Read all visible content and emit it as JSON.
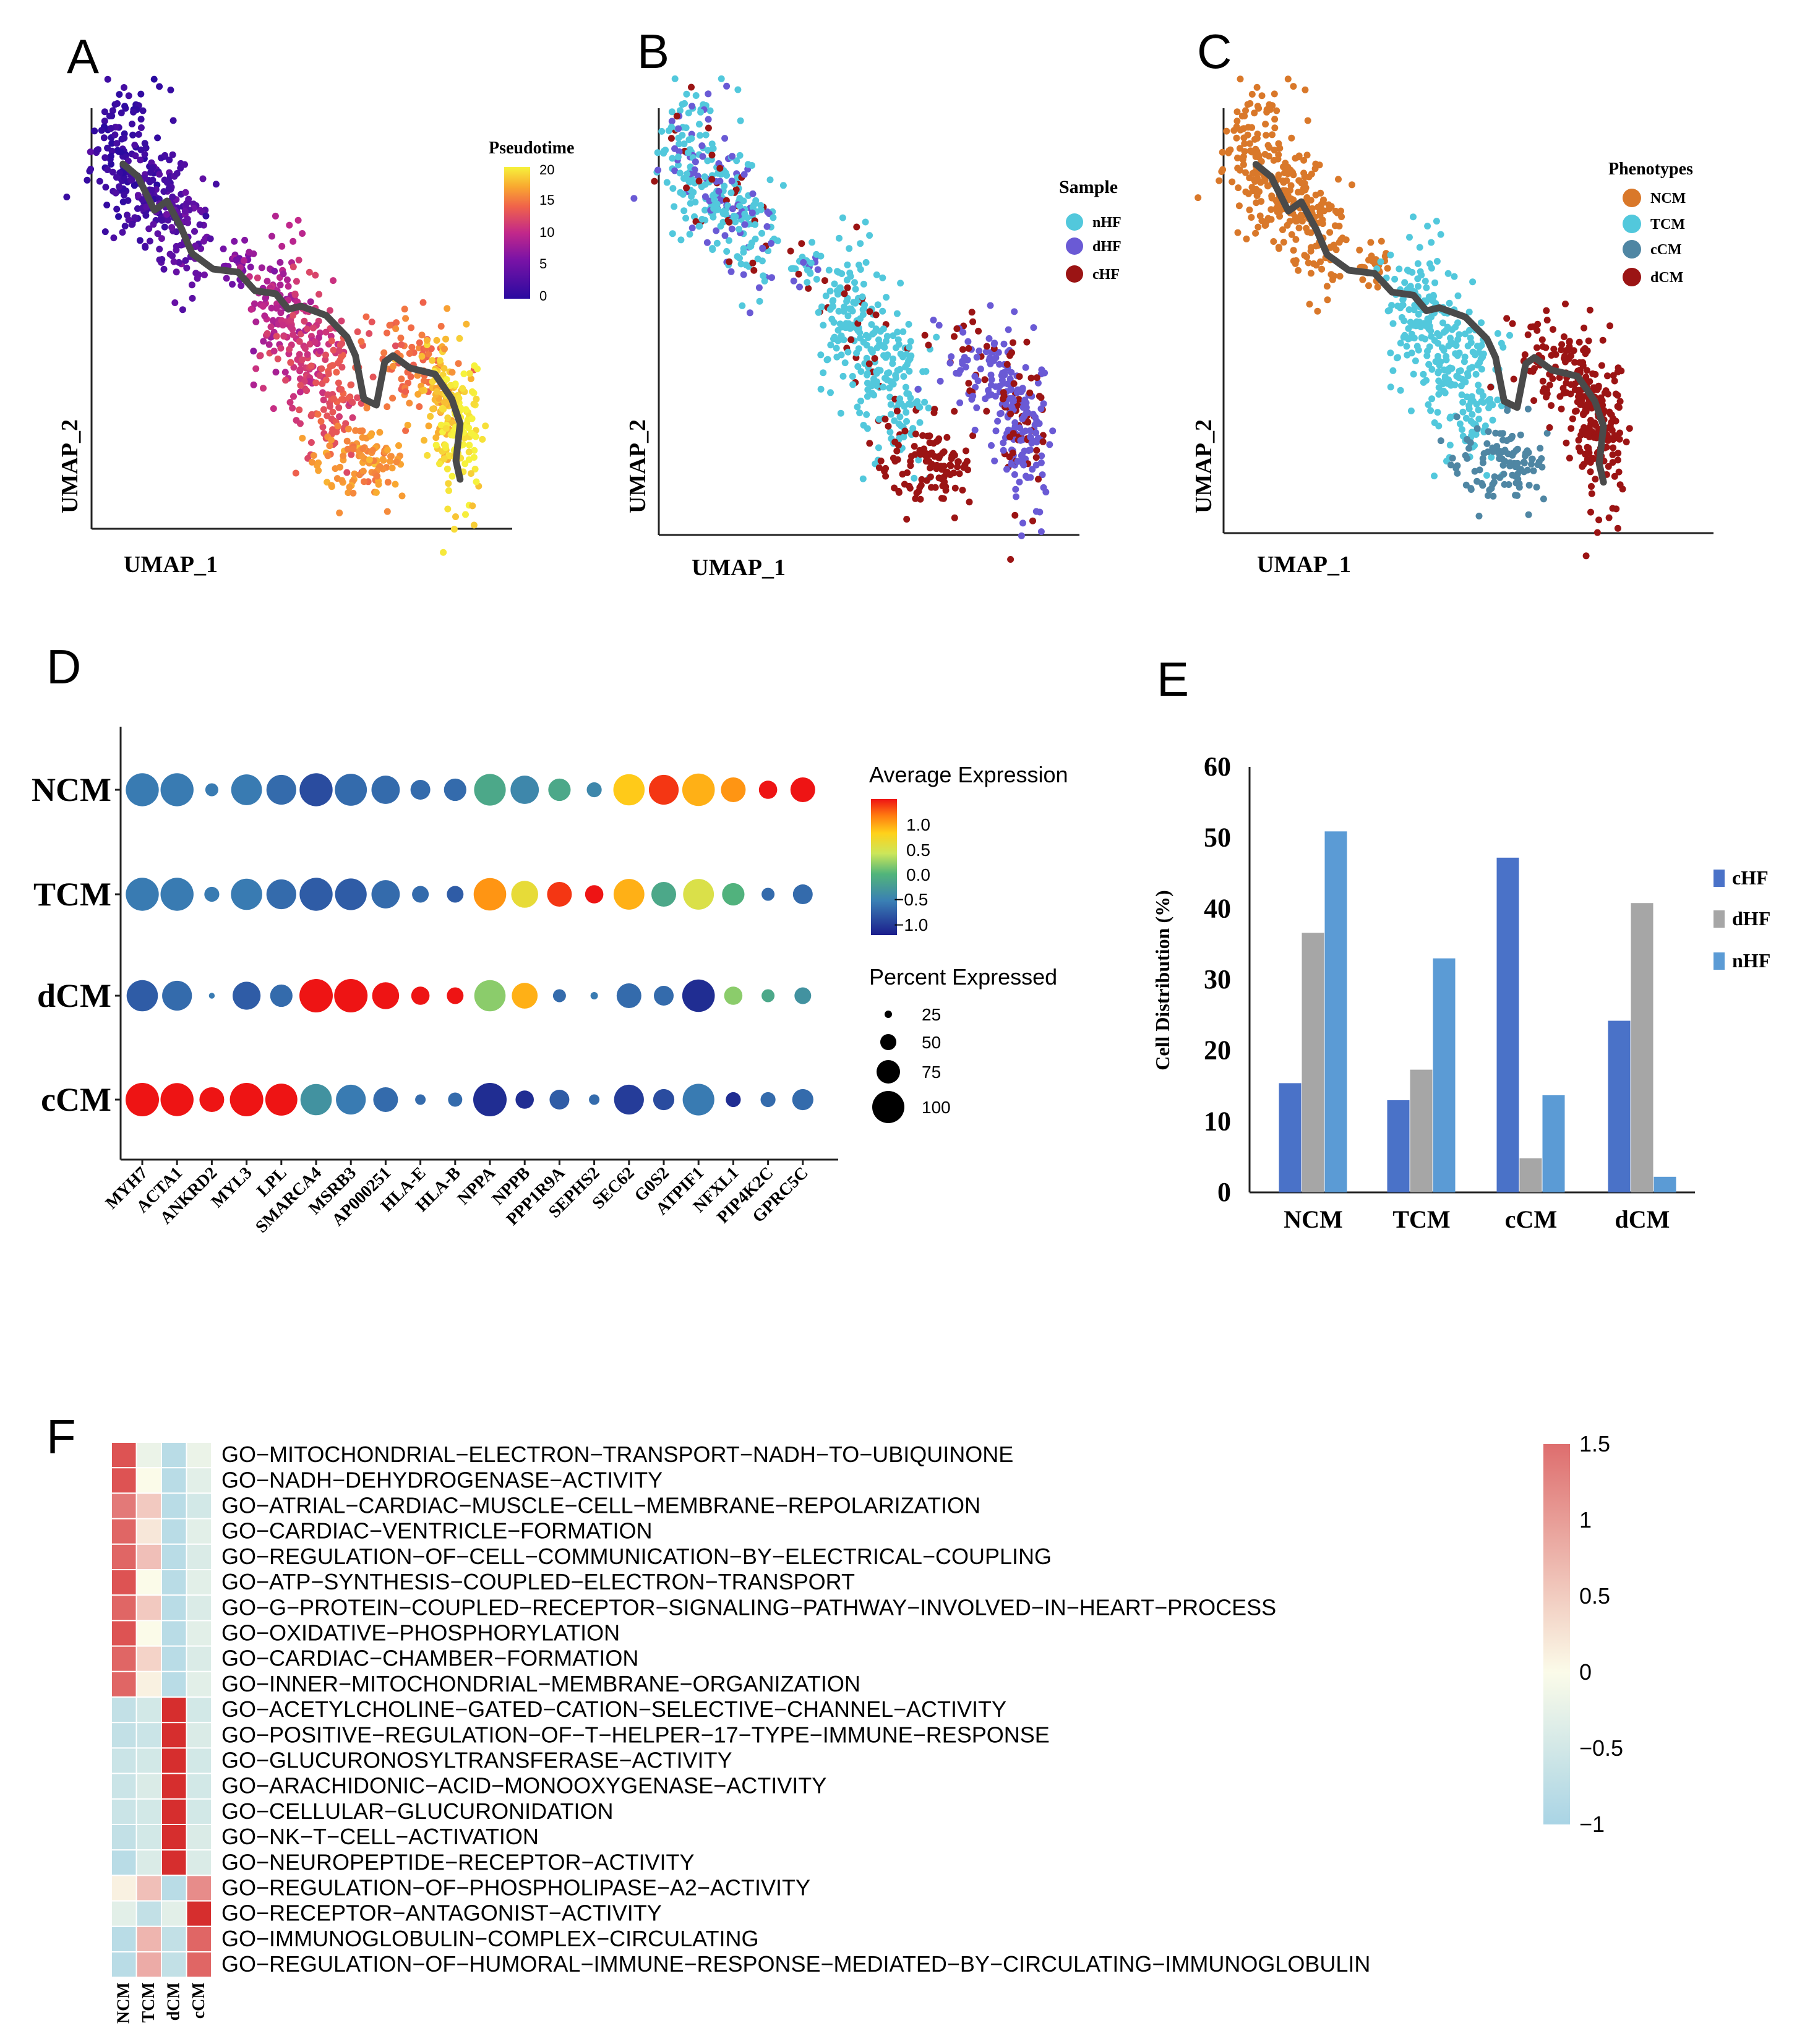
{
  "colors": {
    "NCM": "#d9782a",
    "TCM": "#52c8dc",
    "cCM": "#4f86a3",
    "dCM": "#9b1414",
    "nHF": "#52c8dc",
    "dHF": "#6a5ad5",
    "cHF": "#9b1414",
    "bar_cHF": "#4a72c8",
    "bar_dHF": "#a6a6a6",
    "bar_nHF": "#5b9bd5",
    "trajectory": "#4a4a4a"
  },
  "panel_labels": [
    "A",
    "B",
    "C",
    "D",
    "E",
    "F"
  ],
  "umap": {
    "xlabel": "UMAP_1",
    "ylabel": "UMAP_2",
    "A": {
      "legend_title": "Pseudotime",
      "ticks": [
        "20",
        "15",
        "10",
        "5",
        "0"
      ],
      "range": [
        0,
        20
      ]
    },
    "B": {
      "legend_title": "Sample",
      "items": [
        "nHF",
        "dHF",
        "cHF"
      ]
    },
    "C": {
      "legend_title": "Phenotypes",
      "items": [
        "NCM",
        "TCM",
        "cCM",
        "dCM"
      ]
    }
  },
  "dotplot": {
    "rows": [
      "NCM",
      "TCM",
      "dCM",
      "cCM"
    ],
    "genes": [
      "MYH7",
      "ACTA1",
      "ANKRD2",
      "MYL3",
      "LPL",
      "SMARCA4",
      "MSRB3",
      "AP000251",
      "HLA-E",
      "HLA-B",
      "NPPA",
      "NPPB",
      "PPP1R9A",
      "SEPHS2",
      "SEC62",
      "G0S2",
      "ATPIF1",
      "NFXL1",
      "PIP4K2C",
      "GPRC5C"
    ],
    "avg_expr": [
      [
        -0.6,
        -0.6,
        -0.6,
        -0.6,
        -0.7,
        -0.9,
        -0.7,
        -0.7,
        -0.7,
        -0.7,
        -0.2,
        -0.5,
        -0.2,
        -0.5,
        0.7,
        1.2,
        0.8,
        0.9,
        1.3,
        1.3
      ],
      [
        -0.6,
        -0.6,
        -0.6,
        -0.6,
        -0.7,
        -0.8,
        -0.8,
        -0.7,
        -0.7,
        -0.8,
        0.9,
        0.5,
        1.2,
        1.3,
        0.8,
        -0.2,
        0.4,
        -0.1,
        -0.7,
        -0.7
      ],
      [
        -0.8,
        -0.7,
        -0.6,
        -0.8,
        -0.7,
        1.3,
        1.3,
        1.3,
        1.3,
        1.3,
        0.1,
        0.8,
        -0.7,
        -0.6,
        -0.7,
        -0.7,
        -1.1,
        0.1,
        -0.2,
        -0.4
      ],
      [
        1.3,
        1.3,
        1.3,
        1.3,
        1.3,
        -0.4,
        -0.6,
        -0.7,
        -0.7,
        -0.7,
        -1.1,
        -1.1,
        -0.8,
        -0.7,
        -1.0,
        -0.9,
        -0.6,
        -1.1,
        -0.7,
        -0.7
      ]
    ],
    "pct_expr": [
      [
        98,
        98,
        15,
        85,
        80,
        98,
        92,
        72,
        35,
        45,
        90,
        72,
        45,
        20,
        88,
        80,
        95,
        55,
        30,
        55
      ],
      [
        98,
        98,
        20,
        88,
        80,
        98,
        90,
        72,
        25,
        25,
        95,
        65,
        55,
        30,
        85,
        55,
        85,
        45,
        15,
        35
      ],
      [
        88,
        80,
        3,
        70,
        45,
        100,
        100,
        65,
        30,
        25,
        88,
        60,
        15,
        5,
        55,
        35,
        95,
        30,
        15,
        25
      ],
      [
        100,
        98,
        55,
        100,
        92,
        88,
        80,
        55,
        10,
        18,
        100,
        30,
        35,
        10,
        80,
        40,
        90,
        20,
        20,
        40
      ]
    ],
    "legend_title_expr": "Average Expression",
    "legend_ticks_expr": [
      "1.0",
      "0.5",
      "0.0",
      "−0.5",
      "−1.0"
    ],
    "legend_title_pct": "Percent Expressed",
    "legend_ticks_pct": [
      "25",
      "50",
      "75",
      "100"
    ]
  },
  "chart_data": [
    {
      "type": "bar",
      "panel": "E",
      "categories": [
        "NCM",
        "TCM",
        "cCM",
        "dCM"
      ],
      "series": [
        {
          "name": "cHF",
          "values": [
            15.4,
            13.0,
            47.2,
            24.2
          ]
        },
        {
          "name": "dHF",
          "values": [
            36.6,
            17.3,
            4.8,
            40.8
          ]
        },
        {
          "name": "nHF",
          "values": [
            50.9,
            33.0,
            13.7,
            2.2
          ]
        }
      ],
      "ylabel": "Cell Distribution (%)",
      "ylim": [
        0,
        60
      ],
      "yticks": [
        "0",
        "10",
        "20",
        "30",
        "40",
        "50",
        "60"
      ],
      "legend": "right"
    },
    {
      "type": "heatmap",
      "panel": "F",
      "columns": [
        "NCM",
        "TCM",
        "dCM",
        "cCM"
      ],
      "rows": [
        "GO−MITOCHONDRIAL−ELECTRON−TRANSPORT−NADH−TO−UBIQUINONE",
        "GO−NADH−DEHYDROGENASE−ACTIVITY",
        "GO−ATRIAL−CARDIAC−MUSCLE−CELL−MEMBRANE−REPOLARIZATION",
        "GO−CARDIAC−VENTRICLE−FORMATION",
        "GO−REGULATION−OF−CELL−COMMUNICATION−BY−ELECTRICAL−COUPLING",
        "GO−ATP−SYNTHESIS−COUPLED−ELECTRON−TRANSPORT",
        "GO−G−PROTEIN−COUPLED−RECEPTOR−SIGNALING−PATHWAY−INVOLVED−IN−HEART−PROCESS",
        "GO−OXIDATIVE−PHOSPHORYLATION",
        "GO−CARDIAC−CHAMBER−FORMATION",
        "GO−INNER−MITOCHONDRIAL−MEMBRANE−ORGANIZATION",
        "GO−ACETYLCHOLINE−GATED−CATION−SELECTIVE−CHANNEL−ACTIVITY",
        "GO−POSITIVE−REGULATION−OF−T−HELPER−17−TYPE−IMMUNE−RESPONSE",
        "GO−GLUCURONOSYLTRANSFERASE−ACTIVITY",
        "GO−ARACHIDONIC−ACID−MONOOXYGENASE−ACTIVITY",
        "GO−CELLULAR−GLUCURONIDATION",
        "GO−NK−T−CELL−ACTIVATION",
        "GO−NEUROPEPTIDE−RECEPTOR−ACTIVITY",
        "GO−REGULATION−OF−PHOSPHOLIPASE−A2−ACTIVITY",
        "GO−RECEPTOR−ANTAGONIST−ACTIVITY",
        "GO−IMMUNOGLOBULIN−COMPLEX−CIRCULATING",
        "GO−REGULATION−OF−HUMORAL−IMMUNE−RESPONSE−MEDIATED−BY−CIRCULATING−IMMUNOGLOBULIN"
      ],
      "values": [
        [
          1.3,
          -0.2,
          -0.8,
          -0.2
        ],
        [
          1.3,
          0.0,
          -0.8,
          -0.3
        ],
        [
          1.1,
          0.5,
          -0.8,
          -0.5
        ],
        [
          1.2,
          0.2,
          -0.8,
          -0.3
        ],
        [
          1.2,
          0.6,
          -0.8,
          -0.4
        ],
        [
          1.3,
          0.0,
          -0.8,
          -0.3
        ],
        [
          1.2,
          0.5,
          -0.8,
          -0.4
        ],
        [
          1.3,
          0.0,
          -0.8,
          -0.3
        ],
        [
          1.2,
          0.4,
          -0.8,
          -0.4
        ],
        [
          1.2,
          0.1,
          -0.8,
          -0.3
        ],
        [
          -0.7,
          -0.5,
          1.5,
          -0.5
        ],
        [
          -0.7,
          -0.6,
          1.5,
          -0.4
        ],
        [
          -0.6,
          -0.5,
          1.5,
          -0.5
        ],
        [
          -0.6,
          -0.4,
          1.5,
          -0.5
        ],
        [
          -0.6,
          -0.5,
          1.5,
          -0.5
        ],
        [
          -0.7,
          -0.5,
          1.5,
          -0.4
        ],
        [
          -0.8,
          -0.4,
          1.5,
          -0.4
        ],
        [
          0.1,
          0.6,
          -0.8,
          1.0
        ],
        [
          -0.3,
          -0.7,
          -0.3,
          1.5
        ],
        [
          -0.8,
          0.7,
          -0.7,
          1.2
        ],
        [
          -0.8,
          0.8,
          -0.7,
          1.2
        ]
      ],
      "scale_ticks": [
        "1.5",
        "1",
        "0.5",
        "0",
        "−0.5",
        "−1"
      ],
      "scale_range": [
        -1,
        1.5
      ]
    }
  ]
}
